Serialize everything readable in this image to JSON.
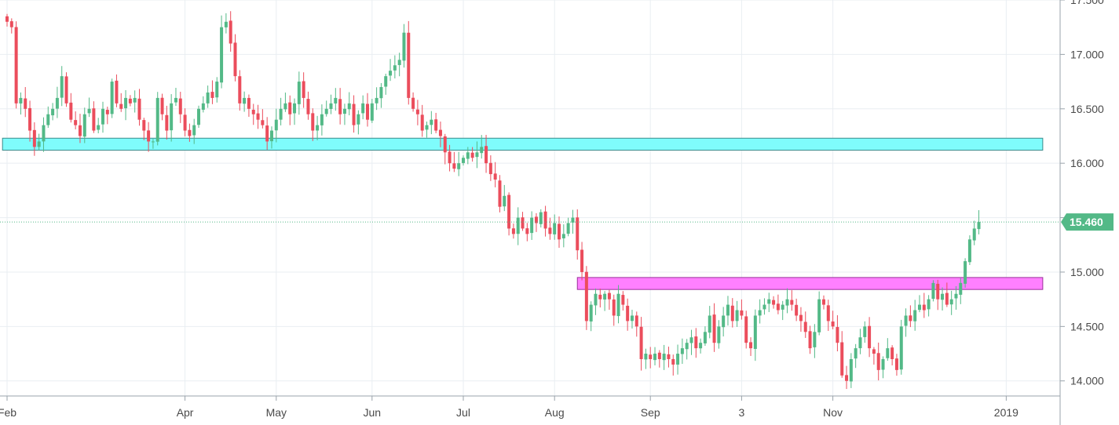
{
  "chart_data": {
    "type": "candlestick",
    "title": "",
    "xlabel": "",
    "ylabel": "",
    "ylim": [
      13.8,
      17.5
    ],
    "y_ticks": [
      {
        "value": 14.0,
        "label": "14.000"
      },
      {
        "value": 14.5,
        "label": "14.500"
      },
      {
        "value": 15.0,
        "label": "15.000"
      },
      {
        "value": 15.5,
        "label": "15.500"
      },
      {
        "value": 16.0,
        "label": "16.000"
      },
      {
        "value": 16.5,
        "label": "16.500"
      },
      {
        "value": 17.0,
        "label": "17.000"
      },
      {
        "value": 17.5,
        "label": "17.500"
      }
    ],
    "x_ticks": [
      {
        "label": "Feb",
        "index": 0
      },
      {
        "label": "Apr",
        "index": 39
      },
      {
        "label": "May",
        "index": 59
      },
      {
        "label": "Jun",
        "index": 80
      },
      {
        "label": "Jul",
        "index": 100
      },
      {
        "label": "Aug",
        "index": 120
      },
      {
        "label": "Sep",
        "index": 141
      },
      {
        "label": "3",
        "index": 161
      },
      {
        "label": "Nov",
        "index": 181
      },
      {
        "label": "2019",
        "index": 219
      }
    ],
    "last_price": {
      "value": 15.46,
      "label": "15.460"
    },
    "zones": [
      {
        "name": "resistance-zone",
        "y_low": 16.12,
        "y_high": 16.23,
        "x_start_index": -1,
        "x_end_index": 227,
        "color": "#7ffcfc",
        "border": "#3c8a8a"
      },
      {
        "name": "support-zone",
        "y_low": 14.84,
        "y_high": 14.95,
        "x_start_index": 125,
        "x_end_index": 227,
        "color": "#ff80ff",
        "border": "#9a309a"
      }
    ],
    "colors": {
      "up": "#53b987",
      "down": "#eb4d5c",
      "grid": "#e9eef2",
      "price_line": "#53b987",
      "axis_text": "#4a4a4a"
    },
    "closes": [
      17.3,
      17.25,
      16.55,
      16.6,
      16.5,
      16.3,
      16.15,
      16.2,
      16.35,
      16.45,
      16.5,
      16.6,
      16.8,
      16.55,
      16.4,
      16.35,
      16.25,
      16.45,
      16.5,
      16.3,
      16.35,
      16.5,
      16.45,
      16.75,
      16.55,
      16.5,
      16.6,
      16.55,
      16.6,
      16.4,
      16.3,
      16.2,
      16.2,
      16.6,
      16.45,
      16.3,
      16.55,
      16.6,
      16.45,
      16.3,
      16.25,
      16.35,
      16.5,
      16.55,
      16.65,
      16.6,
      16.75,
      17.25,
      17.3,
      17.1,
      16.8,
      16.55,
      16.6,
      16.5,
      16.45,
      16.4,
      16.35,
      16.2,
      16.3,
      16.4,
      16.5,
      16.55,
      16.45,
      16.55,
      16.75,
      16.6,
      16.45,
      16.3,
      16.35,
      16.45,
      16.5,
      16.55,
      16.6,
      16.45,
      16.5,
      16.55,
      16.35,
      16.45,
      16.55,
      16.4,
      16.55,
      16.6,
      16.7,
      16.8,
      16.85,
      16.9,
      16.95,
      17.2,
      16.6,
      16.5,
      16.45,
      16.3,
      16.35,
      16.4,
      16.3,
      16.25,
      16.1,
      16.0,
      15.95,
      16.0,
      16.05,
      16.1,
      16.05,
      16.1,
      16.15,
      16.0,
      15.9,
      15.85,
      15.6,
      15.7,
      15.4,
      15.35,
      15.5,
      15.4,
      15.35,
      15.5,
      15.45,
      15.55,
      15.4,
      15.35,
      15.45,
      15.3,
      15.35,
      15.45,
      15.5,
      15.2,
      15.0,
      14.55,
      14.7,
      14.8,
      14.75,
      14.8,
      14.75,
      14.6,
      14.8,
      14.7,
      14.55,
      14.6,
      14.5,
      14.2,
      14.25,
      14.2,
      14.25,
      14.2,
      14.25,
      14.2,
      14.15,
      14.25,
      14.3,
      14.35,
      14.4,
      14.3,
      14.35,
      14.45,
      14.6,
      14.35,
      14.5,
      14.6,
      14.7,
      14.55,
      14.65,
      14.6,
      14.35,
      14.3,
      14.6,
      14.65,
      14.7,
      14.75,
      14.7,
      14.65,
      14.7,
      14.75,
      14.7,
      14.6,
      14.55,
      14.45,
      14.3,
      14.45,
      14.75,
      14.7,
      14.55,
      14.5,
      14.35,
      14.05,
      14.0,
      14.2,
      14.3,
      14.4,
      14.5,
      14.3,
      14.25,
      14.1,
      14.2,
      14.3,
      14.2,
      14.1,
      14.5,
      14.6,
      14.55,
      14.65,
      14.7,
      14.65,
      14.75,
      14.9,
      14.75,
      14.8,
      14.7,
      14.75,
      14.8,
      14.9,
      15.1,
      15.3,
      15.4,
      15.46
    ]
  }
}
